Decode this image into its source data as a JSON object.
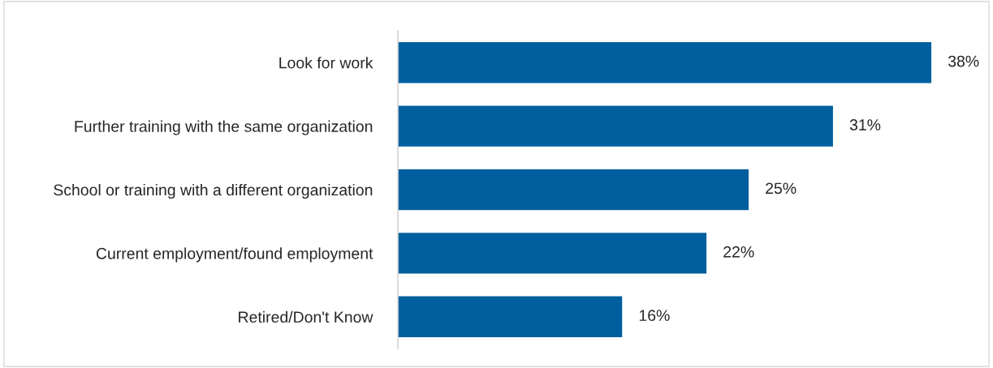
{
  "chart_data": {
    "type": "bar",
    "orientation": "horizontal",
    "categories": [
      "Look for work",
      "Further training with the same organization",
      "School or training with a different organization",
      "Current employment/found employment",
      "Retired/Don't Know"
    ],
    "values": [
      38,
      31,
      25,
      22,
      16
    ],
    "value_labels": [
      "38%",
      "31%",
      "25%",
      "22%",
      "16%"
    ],
    "color": "#005f9e"
  }
}
